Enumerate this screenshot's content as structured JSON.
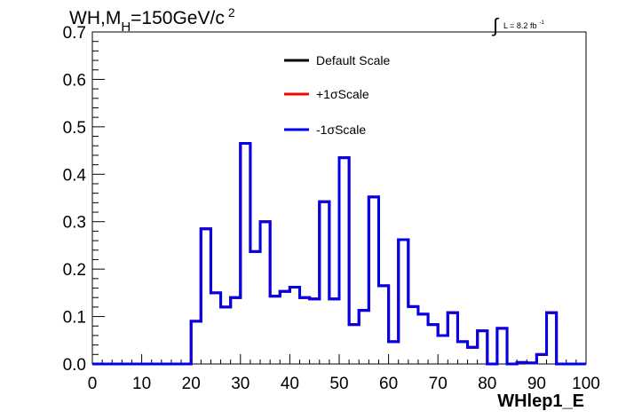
{
  "title": {
    "main": "WH,M",
    "sub": "H",
    "rest": "=150GeV/c",
    "sup": "2"
  },
  "lumi": {
    "integral": "∫",
    "text": "L = 8.2 fb",
    "sup": "-1"
  },
  "chart_data": {
    "type": "histogram",
    "xlabel": "WHlep1_E",
    "ylabel": "",
    "xlim": [
      0,
      100
    ],
    "ylim": [
      0,
      0.7
    ],
    "x_ticks": [
      0,
      10,
      20,
      30,
      40,
      50,
      60,
      70,
      80,
      90,
      100
    ],
    "x_tick_labels": [
      "0",
      "10",
      "20",
      "30",
      "40",
      "50",
      "60",
      "70",
      "80",
      "90",
      "100"
    ],
    "y_ticks": [
      0,
      0.1,
      0.2,
      0.3,
      0.4,
      0.5,
      0.6,
      0.7
    ],
    "y_tick_labels": [
      "0.0",
      "0.1",
      "0.2",
      "0.3",
      "0.4",
      "0.5",
      "0.6",
      "0.7"
    ],
    "bin_edges": [
      0,
      2,
      4,
      6,
      8,
      10,
      12,
      14,
      16,
      18,
      20,
      22,
      24,
      26,
      28,
      30,
      32,
      34,
      36,
      38,
      40,
      42,
      44,
      46,
      48,
      50,
      52,
      54,
      56,
      58,
      60,
      62,
      64,
      66,
      68,
      70,
      72,
      74,
      76,
      78,
      80,
      82,
      84,
      86,
      88,
      90,
      92,
      94,
      96,
      98,
      100
    ],
    "legend": {
      "position": "top-center",
      "entries": [
        {
          "label": "Default Scale",
          "color": "#000000"
        },
        {
          "label": "+1σScale",
          "color": "#ff0000"
        },
        {
          "label": "-1σScale",
          "color": "#0000ee"
        }
      ]
    },
    "series": [
      {
        "name": "Default Scale",
        "color": "#000000",
        "values": [
          0,
          0,
          0,
          0,
          0,
          0,
          0,
          0,
          0,
          0,
          0.09,
          0.285,
          0.15,
          0.12,
          0.14,
          0.465,
          0.237,
          0.3,
          0.143,
          0.153,
          0.162,
          0.14,
          0.137,
          0.342,
          0.137,
          0.435,
          0.083,
          0.113,
          0.352,
          0.165,
          0.047,
          0.262,
          0.121,
          0.105,
          0.083,
          0.06,
          0.108,
          0.047,
          0.035,
          0.07,
          0,
          0.075,
          0,
          0.003,
          0.002,
          0.02,
          0.108,
          0,
          0,
          0
        ]
      },
      {
        "name": "+1σScale",
        "color": "#ff0000",
        "values": [
          0,
          0,
          0,
          0,
          0,
          0,
          0,
          0,
          0,
          0,
          0.09,
          0.285,
          0.15,
          0.12,
          0.14,
          0.465,
          0.237,
          0.3,
          0.143,
          0.153,
          0.162,
          0.14,
          0.137,
          0.342,
          0.137,
          0.435,
          0.083,
          0.113,
          0.352,
          0.165,
          0.047,
          0.262,
          0.121,
          0.105,
          0.083,
          0.06,
          0.108,
          0.047,
          0.035,
          0.07,
          0,
          0.075,
          0,
          0.003,
          0.002,
          0.02,
          0.108,
          0,
          0,
          0
        ]
      },
      {
        "name": "-1σScale",
        "color": "#0000ee",
        "values": [
          0,
          0,
          0,
          0,
          0,
          0,
          0,
          0,
          0,
          0,
          0.09,
          0.285,
          0.15,
          0.12,
          0.14,
          0.465,
          0.237,
          0.3,
          0.143,
          0.153,
          0.162,
          0.14,
          0.137,
          0.342,
          0.137,
          0.435,
          0.083,
          0.113,
          0.352,
          0.165,
          0.047,
          0.262,
          0.121,
          0.105,
          0.083,
          0.06,
          0.108,
          0.047,
          0.035,
          0.07,
          0,
          0.075,
          0,
          0.003,
          0.002,
          0.02,
          0.108,
          0,
          0,
          0
        ]
      }
    ]
  }
}
